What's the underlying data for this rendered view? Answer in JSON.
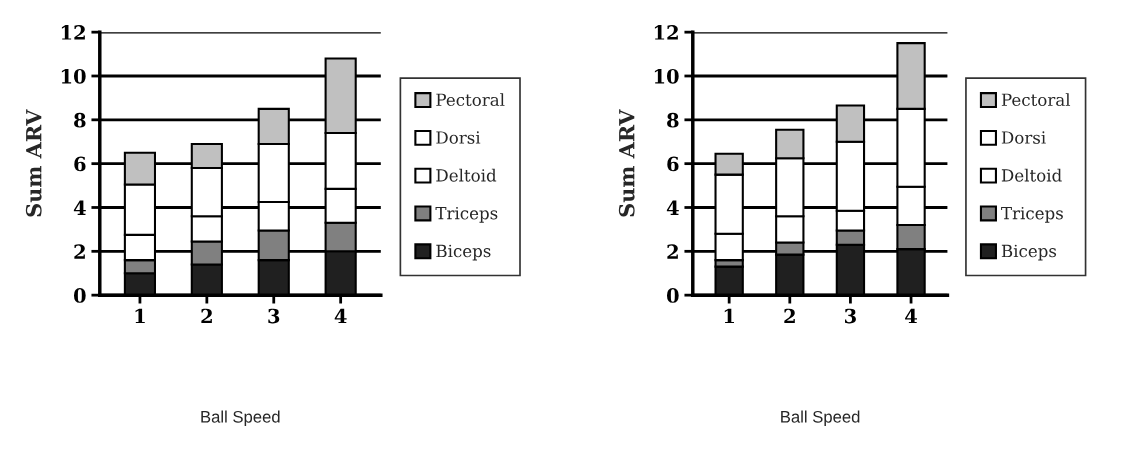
{
  "chart_data": [
    {
      "type": "bar",
      "stacked": true,
      "categories": [
        "1",
        "2",
        "3",
        "4"
      ],
      "xlabel": "Ball Speed",
      "ylabel": "Sum ARV",
      "ylim": [
        0,
        12
      ],
      "yticks": [
        0,
        2,
        4,
        6,
        8,
        10,
        12
      ],
      "grid": "y",
      "legend": "right",
      "series": [
        {
          "name": "Biceps",
          "color": "#202020",
          "values": [
            1.0,
            1.4,
            1.6,
            2.0
          ]
        },
        {
          "name": "Triceps",
          "color": "#808080",
          "values": [
            0.6,
            1.05,
            1.35,
            1.3
          ]
        },
        {
          "name": "Deltoid",
          "color": "#ffffff",
          "values": [
            1.15,
            1.15,
            1.3,
            1.55
          ]
        },
        {
          "name": "Dorsi",
          "color": "#ffffff",
          "values": [
            2.3,
            2.2,
            2.65,
            2.55
          ]
        },
        {
          "name": "Pectoral",
          "color": "#c0c0c0",
          "values": [
            1.45,
            1.1,
            1.6,
            3.4
          ]
        }
      ]
    },
    {
      "type": "bar",
      "stacked": true,
      "categories": [
        "1",
        "2",
        "3",
        "4"
      ],
      "xlabel": "Ball Speed",
      "ylabel": "Sum ARV",
      "ylim": [
        0,
        12
      ],
      "yticks": [
        0,
        2,
        4,
        6,
        8,
        10,
        12
      ],
      "grid": "y",
      "legend": "right",
      "series": [
        {
          "name": "Biceps",
          "color": "#202020",
          "values": [
            1.3,
            1.85,
            2.3,
            2.1
          ]
        },
        {
          "name": "Triceps",
          "color": "#808080",
          "values": [
            0.3,
            0.55,
            0.65,
            1.1
          ]
        },
        {
          "name": "Deltoid",
          "color": "#ffffff",
          "values": [
            1.2,
            1.2,
            0.9,
            1.75
          ]
        },
        {
          "name": "Dorsi",
          "color": "#ffffff",
          "values": [
            2.7,
            2.65,
            3.15,
            3.55
          ]
        },
        {
          "name": "Pectoral",
          "color": "#c0c0c0",
          "values": [
            0.95,
            1.3,
            1.65,
            3.0
          ]
        }
      ]
    }
  ]
}
